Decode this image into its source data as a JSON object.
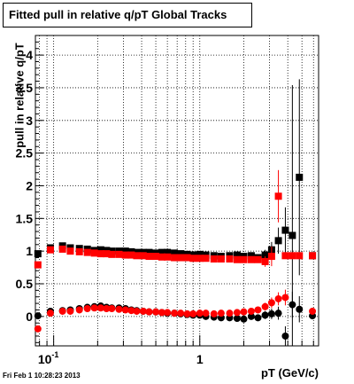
{
  "chart_data": {
    "type": "scatter",
    "title": "Fitted pull in relative q/pT  Global Tracks",
    "xlabel": "pT (GeV/c)",
    "ylabel": "pull in relative q/pT",
    "x_scale": "log",
    "xlim": [
      0.075,
      6.5
    ],
    "ylim": [
      -0.45,
      4.3
    ],
    "x_ticks": [
      {
        "value": 0.1,
        "base": "10",
        "exp": "-1"
      },
      {
        "value": 1,
        "label": "1"
      }
    ],
    "y_ticks": [
      0,
      0.5,
      1,
      1.5,
      2,
      2.5,
      3,
      3.5,
      4
    ],
    "y_tick_labels": [
      "0",
      "0.5",
      "1",
      "1.5",
      "2",
      "2.5",
      "3",
      "3.5",
      "4"
    ],
    "grid": true,
    "series": [
      {
        "color": "#000000",
        "marker": "square",
        "x": [
          0.078,
          0.095,
          0.115,
          0.13,
          0.15,
          0.17,
          0.19,
          0.21,
          0.23,
          0.25,
          0.28,
          0.31,
          0.34,
          0.37,
          0.41,
          0.45,
          0.5,
          0.55,
          0.6,
          0.67,
          0.74,
          0.82,
          0.9,
          1.0,
          1.1,
          1.25,
          1.4,
          1.6,
          1.8,
          2.0,
          2.25,
          2.5,
          2.8,
          3.1,
          3.45,
          3.85,
          4.3,
          4.8,
          5.9
        ],
        "y": [
          0.96,
          1.05,
          1.08,
          1.05,
          1.04,
          1.03,
          1.01,
          1.02,
          1.01,
          1.0,
          1.0,
          1.0,
          0.99,
          0.98,
          0.98,
          0.98,
          0.97,
          0.98,
          0.98,
          0.97,
          0.96,
          0.95,
          0.94,
          0.95,
          0.94,
          0.93,
          0.92,
          0.93,
          0.94,
          0.92,
          0.93,
          0.9,
          0.94,
          1.02,
          1.16,
          1.32,
          1.24,
          2.13,
          0.93
        ],
        "err": [
          0.02,
          0.01,
          0.01,
          0.01,
          0.01,
          0.01,
          0.01,
          0.01,
          0.01,
          0.01,
          0.01,
          0.01,
          0.01,
          0.01,
          0.01,
          0.01,
          0.01,
          0.01,
          0.01,
          0.01,
          0.01,
          0.01,
          0.01,
          0.01,
          0.01,
          0.02,
          0.02,
          0.02,
          0.03,
          0.03,
          0.04,
          0.05,
          0.08,
          0.12,
          0.2,
          0.35,
          2.3,
          1.5,
          0.05
        ]
      },
      {
        "color": "#000000",
        "marker": "circle",
        "x": [
          0.078,
          0.095,
          0.115,
          0.13,
          0.15,
          0.17,
          0.19,
          0.21,
          0.23,
          0.25,
          0.28,
          0.31,
          0.34,
          0.37,
          0.41,
          0.45,
          0.5,
          0.55,
          0.6,
          0.67,
          0.74,
          0.82,
          0.9,
          1.0,
          1.1,
          1.25,
          1.4,
          1.6,
          1.8,
          2.0,
          2.25,
          2.5,
          2.8,
          3.1,
          3.45,
          3.85,
          4.3,
          4.8,
          5.9
        ],
        "y": [
          0.01,
          0.08,
          0.09,
          0.1,
          0.12,
          0.14,
          0.15,
          0.16,
          0.14,
          0.13,
          0.13,
          0.12,
          0.1,
          0.09,
          0.08,
          0.07,
          0.07,
          0.06,
          0.05,
          0.05,
          0.04,
          0.03,
          0.02,
          0.02,
          0.0,
          -0.01,
          -0.02,
          -0.02,
          -0.03,
          -0.04,
          0.0,
          -0.02,
          0.02,
          0.04,
          0.05,
          -0.3,
          0.18,
          0.11,
          0.01
        ],
        "err": [
          0.02,
          0.01,
          0.01,
          0.01,
          0.01,
          0.01,
          0.01,
          0.01,
          0.01,
          0.01,
          0.01,
          0.01,
          0.01,
          0.01,
          0.01,
          0.01,
          0.01,
          0.01,
          0.01,
          0.01,
          0.01,
          0.01,
          0.01,
          0.01,
          0.01,
          0.02,
          0.02,
          0.02,
          0.03,
          0.03,
          0.04,
          0.05,
          0.06,
          0.08,
          0.1,
          0.15,
          0.2,
          0.2,
          0.05
        ]
      },
      {
        "color": "#ff0000",
        "marker": "square",
        "x": [
          0.078,
          0.095,
          0.115,
          0.13,
          0.15,
          0.17,
          0.19,
          0.21,
          0.23,
          0.25,
          0.28,
          0.31,
          0.34,
          0.37,
          0.41,
          0.45,
          0.5,
          0.55,
          0.6,
          0.67,
          0.74,
          0.82,
          0.9,
          1.0,
          1.1,
          1.25,
          1.4,
          1.6,
          1.8,
          2.0,
          2.25,
          2.5,
          2.8,
          3.1,
          3.45,
          3.85,
          4.3,
          4.8,
          5.9
        ],
        "y": [
          0.79,
          1.02,
          1.03,
          1.0,
          0.99,
          0.98,
          0.97,
          0.96,
          0.96,
          0.95,
          0.95,
          0.94,
          0.94,
          0.93,
          0.93,
          0.92,
          0.92,
          0.91,
          0.91,
          0.9,
          0.9,
          0.9,
          0.89,
          0.89,
          0.89,
          0.88,
          0.88,
          0.88,
          0.87,
          0.87,
          0.87,
          0.87,
          0.84,
          0.92,
          1.84,
          0.93,
          0.93,
          0.93,
          0.93
        ],
        "err": [
          0.02,
          0.01,
          0.01,
          0.01,
          0.01,
          0.01,
          0.01,
          0.01,
          0.01,
          0.01,
          0.01,
          0.01,
          0.01,
          0.01,
          0.01,
          0.01,
          0.01,
          0.01,
          0.01,
          0.01,
          0.01,
          0.01,
          0.01,
          0.01,
          0.01,
          0.02,
          0.02,
          0.02,
          0.03,
          0.03,
          0.04,
          0.05,
          0.08,
          0.15,
          0.4,
          0.05,
          0.05,
          0.05,
          0.05
        ]
      },
      {
        "color": "#ff0000",
        "marker": "circle",
        "x": [
          0.078,
          0.095,
          0.115,
          0.13,
          0.15,
          0.17,
          0.19,
          0.21,
          0.23,
          0.25,
          0.28,
          0.31,
          0.34,
          0.37,
          0.41,
          0.45,
          0.5,
          0.55,
          0.6,
          0.67,
          0.74,
          0.82,
          0.9,
          1.0,
          1.1,
          1.25,
          1.4,
          1.6,
          1.8,
          2.0,
          2.25,
          2.5,
          2.8,
          3.1,
          3.45,
          3.85,
          5.9
        ],
        "y": [
          -0.19,
          0.05,
          0.08,
          0.08,
          0.1,
          0.12,
          0.13,
          0.13,
          0.12,
          0.12,
          0.11,
          0.1,
          0.09,
          0.08,
          0.08,
          0.07,
          0.07,
          0.06,
          0.06,
          0.05,
          0.05,
          0.04,
          0.04,
          0.05,
          0.05,
          0.04,
          0.05,
          0.05,
          0.06,
          0.07,
          0.08,
          0.1,
          0.15,
          0.21,
          0.27,
          0.29,
          0.08
        ],
        "err": [
          0.02,
          0.01,
          0.01,
          0.01,
          0.01,
          0.01,
          0.01,
          0.01,
          0.01,
          0.01,
          0.01,
          0.01,
          0.01,
          0.01,
          0.01,
          0.01,
          0.01,
          0.01,
          0.01,
          0.01,
          0.01,
          0.01,
          0.01,
          0.01,
          0.01,
          0.02,
          0.02,
          0.02,
          0.03,
          0.03,
          0.04,
          0.05,
          0.06,
          0.08,
          0.1,
          0.12,
          0.05
        ]
      }
    ]
  },
  "footer": {
    "timestamp": "Fri Feb  1 10:28:23 2013"
  }
}
